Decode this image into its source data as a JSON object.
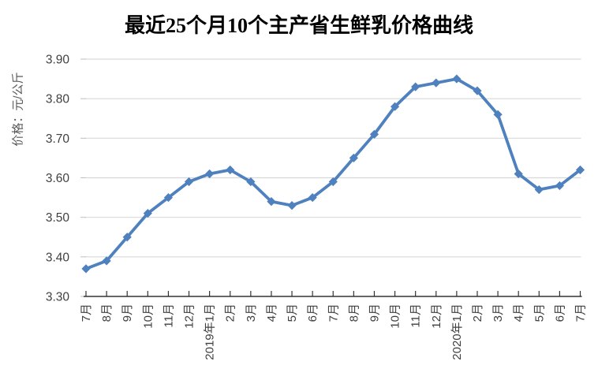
{
  "chart_data": {
    "type": "line",
    "title": "最近25个月10个主产省生鲜乳价格曲线",
    "xlabel": "",
    "ylabel": "价格：元/公斤",
    "categories": [
      "7月",
      "8月",
      "9月",
      "10月",
      "11月",
      "12月",
      "2019年1月",
      "2月",
      "3月",
      "4月",
      "5月",
      "6月",
      "7月",
      "8月",
      "9月",
      "10月",
      "11月",
      "12月",
      "2020年1月",
      "2月",
      "3月",
      "4月",
      "5月",
      "6月",
      "7月"
    ],
    "values": [
      3.37,
      3.39,
      3.45,
      3.51,
      3.55,
      3.59,
      3.61,
      3.62,
      3.59,
      3.54,
      3.53,
      3.55,
      3.59,
      3.65,
      3.71,
      3.78,
      3.83,
      3.84,
      3.85,
      3.82,
      3.76,
      3.61,
      3.57,
      3.58,
      3.62
    ],
    "ylim": [
      3.3,
      3.9
    ],
    "yticks": [
      "3.90",
      "3.80",
      "3.70",
      "3.60",
      "3.50",
      "3.40",
      "3.30"
    ],
    "grid": "horizontal",
    "legend": "none",
    "marker": "diamond",
    "colors": {
      "line": "#4E81BD",
      "grid": "#D9D9D9",
      "axis": "#333333",
      "tick": "#BFBFBF",
      "tick_label": "#404040",
      "axis_title": "#595959",
      "title": "#000000"
    }
  }
}
